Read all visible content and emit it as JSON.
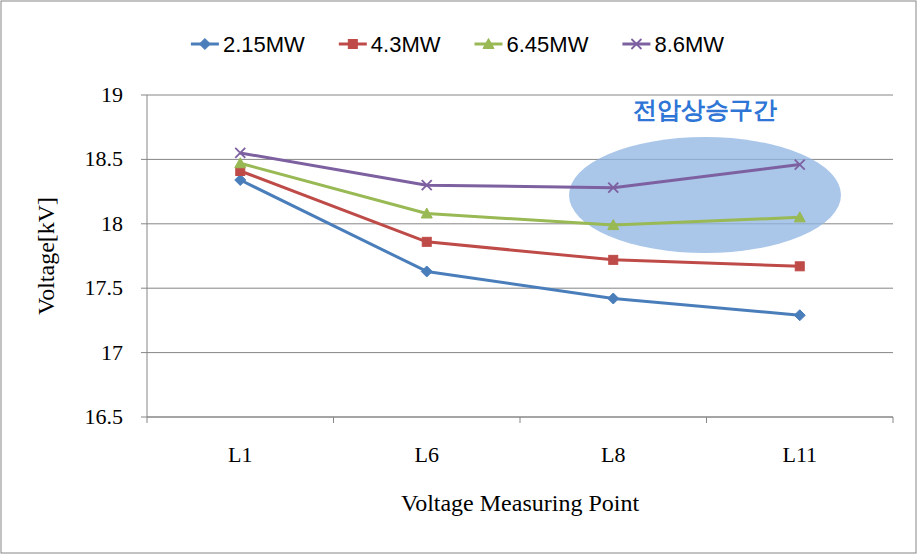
{
  "chart_data": {
    "type": "line",
    "categories": [
      "L1",
      "L6",
      "L8",
      "L11"
    ],
    "x_label": "Voltage Measuring Point",
    "y_label": "Voltage[kV]",
    "annotation": "전압상승구간",
    "ylim": [
      16.5,
      19
    ],
    "yticks": [
      16.5,
      17,
      17.5,
      18,
      18.5,
      19
    ],
    "grid": true,
    "legend": "top",
    "series": [
      {
        "name": "2.15MW",
        "color": "#4a7ebb",
        "marker": "diamond",
        "values": [
          18.34,
          17.63,
          17.42,
          17.29
        ]
      },
      {
        "name": "4.3MW",
        "color": "#be4b48",
        "marker": "square",
        "values": [
          18.41,
          17.86,
          17.72,
          17.67
        ]
      },
      {
        "name": "6.45MW",
        "color": "#98b954",
        "marker": "triangle",
        "values": [
          18.47,
          18.08,
          17.99,
          18.05
        ]
      },
      {
        "name": "8.6MW",
        "color": "#7d60a0",
        "marker": "x",
        "values": [
          18.55,
          18.3,
          18.28,
          18.46
        ]
      }
    ]
  }
}
